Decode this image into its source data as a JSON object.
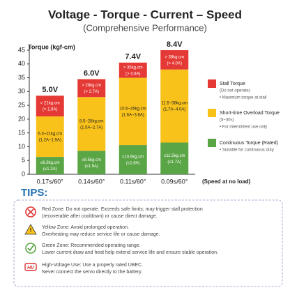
{
  "chart_data": {
    "type": "stacked-bar",
    "title": "Voltage - Torque - Current – Speed",
    "subtitle": "(Comprehensive Performance)",
    "y_label": "Torque (kgf-cm)",
    "x_label": "(Speed at no load)",
    "categories": [
      "0.17s/60°",
      "0.14s/60°",
      "0.11s/60°",
      "0.09s/60°"
    ],
    "top_labels": [
      "5.0V",
      "6.0V",
      "7.4V",
      "8.4V"
    ],
    "ylim": [
      0,
      45
    ],
    "yticks": [
      0,
      5,
      10,
      15,
      20,
      25,
      30,
      35,
      40,
      45
    ],
    "series": [
      {
        "name": "Continuous Torque (Rated)",
        "color": "#5aa546",
        "values": [
          6.3,
          8.5,
          10.6,
          11.5
        ],
        "labels": [
          "≤6.3kg.cm",
          "≤8.5kg.cm",
          "≤10.6kg.cm",
          "≤11.5kg.cm"
        ],
        "sublabels": [
          "(≤1.2A)",
          "(≤1.5A)",
          "(≤1.6A)",
          "(≤1.7A)"
        ],
        "notes": [
          "• Suitable for continuous duty"
        ]
      },
      {
        "name": "Short-time Overload Torque",
        "color": "#f9c21b",
        "values": [
          14.7,
          19.5,
          24.4,
          26.5
        ],
        "labels": [
          "6.3~21kg.cm",
          "8.5~28kg.cm",
          "10.6~35kg.cm",
          "11.5~38kg.cm"
        ],
        "sublabels": [
          "(1.2A~1.9A)",
          "(1.5A~2.7A)",
          "(1.6A~3.6A)",
          "(1.7A~4.0A)"
        ],
        "notes": [
          "(5~30s)",
          "• For intermittent use only"
        ]
      },
      {
        "name": "Stall Torque",
        "color": "#e53935",
        "values": [
          7.5,
          6.5,
          5.5,
          7
        ],
        "labels": [
          "> 21kg.cm",
          "> 28kg.cm",
          "> 35kg.cm",
          "> 38kg.cm"
        ],
        "sublabels": [
          "(> 1.9A)",
          "(> 2.7A)",
          "(> 3.6A)",
          "(> 4.0A)"
        ],
        "notes": [
          "(Do not operate)",
          "• Maximum torque at stall"
        ]
      }
    ]
  },
  "tips": {
    "title": "TIPS:",
    "items": [
      [
        "Red Zone: Do not operate. Exceeds safe limits; may trigger stall protection",
        "(recoverable after cooldown) or cause direct damage."
      ],
      [
        "Yellow Zone: Avoid prolonged operation.",
        "Overheating may reduce service life or cause damage."
      ],
      [
        "Green Zone: Recommended operating range.",
        "Lower current draw and heat help extend service life and ensure stable operation."
      ],
      [
        "High-Voltage Use: Use a properly rated UBEC.",
        "Never connect the servo directly to the battery."
      ]
    ]
  }
}
